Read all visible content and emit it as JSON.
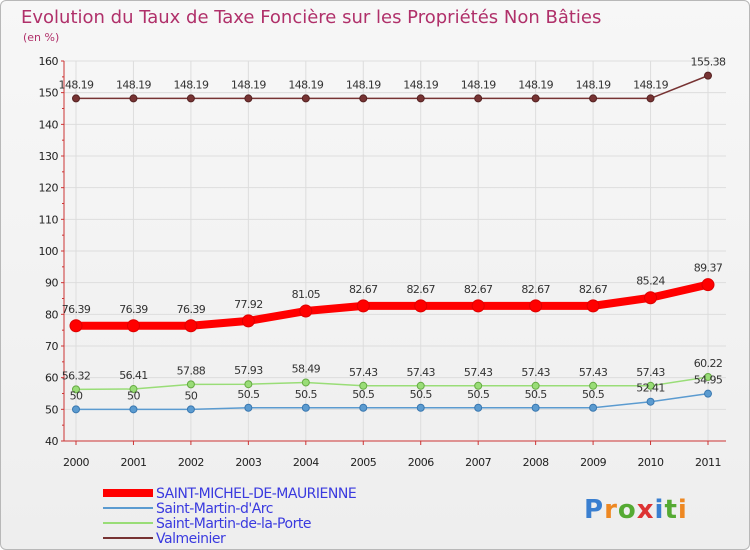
{
  "chart_data": {
    "type": "line",
    "title": "Evolution du Taux de Taxe Foncière sur les Propriétés Non Bâties",
    "unit_label": "(en %)",
    "xlabel": "",
    "ylabel": "",
    "ylim": [
      40,
      160
    ],
    "yticks": [
      40,
      50,
      60,
      70,
      80,
      90,
      100,
      110,
      120,
      130,
      140,
      150,
      160
    ],
    "categories": [
      "2000",
      "2001",
      "2002",
      "2003",
      "2004",
      "2005",
      "2006",
      "2007",
      "2008",
      "2009",
      "2010",
      "2011"
    ],
    "grid": true,
    "series": [
      {
        "name": "SAINT-MICHEL-DE-MAURIENNE",
        "color": "#ff0000",
        "values": [
          76.39,
          76.39,
          76.39,
          77.92,
          81.05,
          82.67,
          82.67,
          82.67,
          82.67,
          82.67,
          85.24,
          89.37
        ],
        "labels": [
          "76.39",
          "76.39",
          "76.39",
          "77.92",
          "81.05",
          "82.67",
          "82.67",
          "82.67",
          "82.67",
          "82.67",
          "85.24",
          "89.37"
        ]
      },
      {
        "name": "Saint-Martin-d'Arc",
        "color": "#5b9bd0",
        "values": [
          50,
          50,
          50,
          50.5,
          50.5,
          50.5,
          50.5,
          50.5,
          50.5,
          50.5,
          52.41,
          54.95
        ],
        "labels": [
          "50",
          "50",
          "50",
          "50.5",
          "50.5",
          "50.5",
          "50.5",
          "50.5",
          "50.5",
          "50.5",
          "52.41",
          "54.95"
        ]
      },
      {
        "name": "Saint-Martin-de-la-Porte",
        "color": "#99dd77",
        "values": [
          56.32,
          56.41,
          57.88,
          57.93,
          58.49,
          57.43,
          57.43,
          57.43,
          57.43,
          57.43,
          57.43,
          60.22
        ],
        "labels": [
          "56.32",
          "56.41",
          "57.88",
          "57.93",
          "58.49",
          "57.43",
          "57.43",
          "57.43",
          "57.43",
          "57.43",
          "57.43",
          "60.22"
        ]
      },
      {
        "name": "Valmeinier",
        "color": "#773333",
        "values": [
          148.19,
          148.19,
          148.19,
          148.19,
          148.19,
          148.19,
          148.19,
          148.19,
          148.19,
          148.19,
          148.19,
          155.38
        ],
        "labels": [
          "148.19",
          "148.19",
          "148.19",
          "148.19",
          "148.19",
          "148.19",
          "148.19",
          "148.19",
          "148.19",
          "148.19",
          "148.19",
          "155.38"
        ]
      }
    ],
    "legend_position": "bottom-left"
  },
  "logo": {
    "text": "Proxiti"
  }
}
